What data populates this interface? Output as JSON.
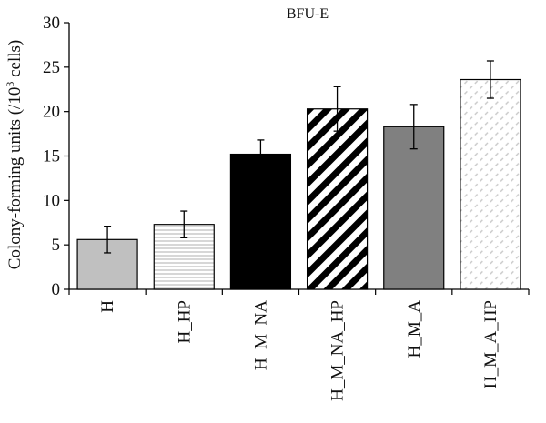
{
  "chart_data": {
    "type": "bar",
    "title": "BFU-E",
    "ylabel_main": "Colony-forming units (/10",
    "ylabel_sup": "3",
    "ylabel_tail": " cells)",
    "xlabel": "",
    "ylim": [
      0,
      30
    ],
    "yticks": [
      0,
      5,
      10,
      15,
      20,
      25,
      30
    ],
    "categories": [
      "H",
      "H_HP",
      "H_M_NA",
      "H_M_NA_HP",
      "H_M_A",
      "H_M_A_HP"
    ],
    "values": [
      5.6,
      7.3,
      15.2,
      20.3,
      18.3,
      23.6
    ],
    "errors": [
      1.5,
      1.5,
      1.6,
      2.5,
      2.5,
      2.1
    ],
    "fills": [
      {
        "pattern": "solid",
        "color": "#c0c0c0"
      },
      {
        "pattern": "horizontal-lines",
        "color": "#bdbdbd"
      },
      {
        "pattern": "solid",
        "color": "#000000"
      },
      {
        "pattern": "wide-diagonal",
        "color": "#000000"
      },
      {
        "pattern": "solid",
        "color": "#808080"
      },
      {
        "pattern": "light-diagonal",
        "color": "#c8c8c8"
      }
    ],
    "grid": false,
    "legend": "none"
  }
}
